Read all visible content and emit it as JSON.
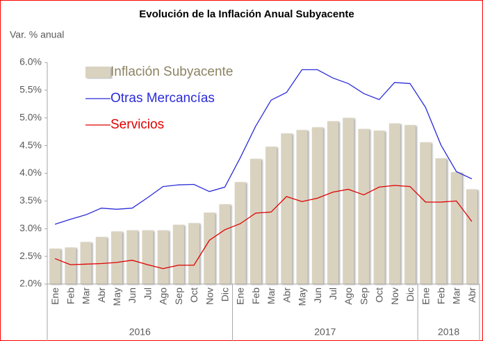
{
  "chart_data": {
    "type": "bar",
    "title": "Evolución de la Inflación Anual Subyacente",
    "y_label": "Var. % anual",
    "categories": [
      "Ene",
      "Feb",
      "Mar",
      "Abr",
      "May",
      "Jun",
      "Jul",
      "Ago",
      "Sep",
      "Oct",
      "Nov",
      "Dic",
      "Ene",
      "Feb",
      "Mar",
      "Abr",
      "May",
      "Jun",
      "Jul",
      "Ago",
      "Sep",
      "Oct",
      "Nov",
      "Dic",
      "Ene",
      "Feb",
      "Mar",
      "Abr"
    ],
    "groups": [
      {
        "label": "2016",
        "size": 12
      },
      {
        "label": "2017",
        "size": 12
      },
      {
        "label": "2018",
        "size": 4
      }
    ],
    "series": [
      {
        "name": "Inflación Subyacente",
        "type": "bar",
        "color": "#d9d2bf",
        "label_color": "#8c8363",
        "values": [
          2.64,
          2.66,
          2.76,
          2.85,
          2.95,
          2.97,
          2.97,
          2.97,
          3.07,
          3.1,
          3.29,
          3.44,
          3.84,
          4.26,
          4.48,
          4.72,
          4.78,
          4.83,
          4.94,
          5.0,
          4.8,
          4.77,
          4.9,
          4.87,
          4.56,
          4.27,
          4.02,
          3.71
        ]
      },
      {
        "name": "Otras Mercancías",
        "type": "line",
        "color": "#2b2bd9",
        "label_color": "#2b2bd9",
        "values": [
          3.08,
          3.17,
          3.25,
          3.37,
          3.35,
          3.37,
          3.56,
          3.76,
          3.79,
          3.8,
          3.67,
          3.75,
          4.28,
          4.85,
          5.32,
          5.46,
          5.87,
          5.87,
          5.72,
          5.62,
          5.44,
          5.33,
          5.64,
          5.62,
          5.19,
          4.51,
          4.03,
          3.9
        ]
      },
      {
        "name": "Servicios",
        "type": "line",
        "color": "#e00000",
        "label_color": "#e00000",
        "values": [
          2.46,
          2.35,
          2.36,
          2.37,
          2.39,
          2.43,
          2.35,
          2.28,
          2.34,
          2.34,
          2.79,
          2.98,
          3.09,
          3.28,
          3.3,
          3.58,
          3.49,
          3.55,
          3.66,
          3.71,
          3.61,
          3.75,
          3.78,
          3.76,
          3.48,
          3.48,
          3.5,
          3.13
        ]
      }
    ],
    "ylim": [
      2.0,
      6.0
    ],
    "yticks": [
      {
        "value": 2.0,
        "label": "2.0%"
      },
      {
        "value": 2.5,
        "label": "2.5%"
      },
      {
        "value": 3.0,
        "label": "3.0%"
      },
      {
        "value": 3.5,
        "label": "3.5%"
      },
      {
        "value": 4.0,
        "label": "4.0%"
      },
      {
        "value": 4.5,
        "label": "4.5%"
      },
      {
        "value": 5.0,
        "label": "5.0%"
      },
      {
        "value": 5.5,
        "label": "5.5%"
      },
      {
        "value": 6.0,
        "label": "6.0%"
      }
    ],
    "grid": false,
    "legend": "top-left",
    "border_color": "#ff0000"
  }
}
